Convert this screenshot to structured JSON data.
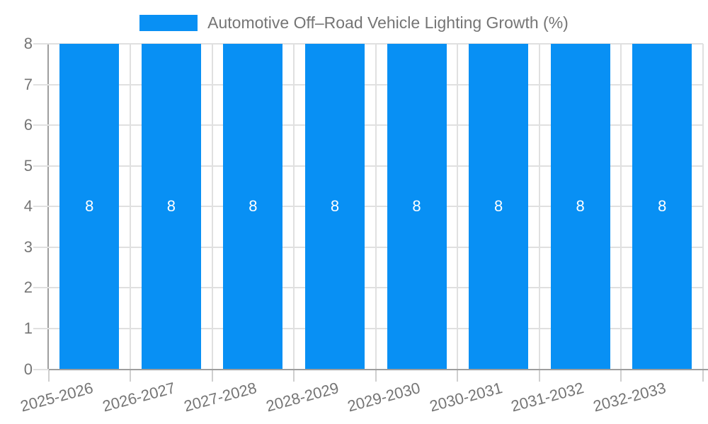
{
  "chart_data": {
    "type": "bar",
    "title": "Automotive Off–Road Vehicle Lighting Growth (%)",
    "categories": [
      "2025-2026",
      "2026-2027",
      "2027-2028",
      "2028-2029",
      "2029-2030",
      "2030-2031",
      "2031-2032",
      "2032-2033"
    ],
    "series": [
      {
        "name": "Automotive Off–Road Vehicle Lighting Growth (%)",
        "values": [
          8,
          8,
          8,
          8,
          8,
          8,
          8,
          8
        ]
      }
    ],
    "bar_value_labels": [
      "8",
      "8",
      "8",
      "8",
      "8",
      "8",
      "8",
      "8"
    ],
    "xlabel": "",
    "ylabel": "",
    "ylim": [
      0,
      8
    ],
    "yticks": [
      "0",
      "1",
      "2",
      "3",
      "4",
      "5",
      "6",
      "7",
      "8"
    ],
    "grid": true,
    "legend_position": "top-center",
    "colors": {
      "bar": "#0890f4",
      "axis_line": "#9e9e9e",
      "gridline": "#e0e0e0",
      "tick": "#cfcfcf",
      "axis_text": "#757575",
      "value_label": "#ffffff",
      "background": "#ffffff"
    }
  }
}
